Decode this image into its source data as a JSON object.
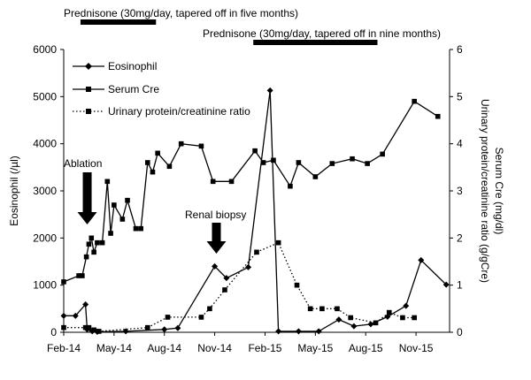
{
  "chart_data": {
    "type": "line",
    "x_axis": {
      "tick_labels": [
        "Feb-14",
        "May-14",
        "Aug-14",
        "Nov-14",
        "Feb-15",
        "May-15",
        "Aug-15",
        "Nov-15"
      ],
      "tick_months": [
        0,
        3,
        6,
        9,
        12,
        15,
        18,
        21
      ],
      "range_months": [
        0,
        23
      ]
    },
    "y_left": {
      "label": "Eosinophil (/µl)",
      "range": [
        0,
        6000
      ],
      "ticks": [
        "0",
        "1000",
        "2000",
        "3000",
        "4000",
        "5000",
        "6000"
      ]
    },
    "y_right": {
      "label_line1": "Serum Cre (mg/dl)",
      "label_line2": "Urinary protein/creatinine ratio (g/gCre)",
      "range": [
        0,
        6
      ],
      "ticks": [
        "0",
        "1",
        "2",
        "3",
        "4",
        "5",
        "6"
      ]
    },
    "legend": {
      "placement": "top-left",
      "entries": [
        "Eosinophil",
        "Serum Cre",
        "Urinary protein/creatinine ratio"
      ]
    },
    "series": [
      {
        "name": "Eosinophil",
        "axis": "left",
        "marker": "diamond",
        "line": "solid",
        "points": [
          [
            0,
            350
          ],
          [
            0.7,
            350
          ],
          [
            1.3,
            590
          ],
          [
            1.4,
            60
          ],
          [
            1.7,
            20
          ],
          [
            2.0,
            10
          ],
          [
            3.7,
            20
          ],
          [
            6.0,
            60
          ],
          [
            6.8,
            90
          ],
          [
            9.0,
            1400
          ],
          [
            9.7,
            1150
          ],
          [
            11.0,
            1380
          ],
          [
            12.3,
            5130
          ],
          [
            12.8,
            20
          ],
          [
            14.0,
            20
          ],
          [
            15.2,
            20
          ],
          [
            16.4,
            270
          ],
          [
            17.3,
            130
          ],
          [
            18.3,
            170
          ],
          [
            19.3,
            330
          ],
          [
            20.4,
            560
          ],
          [
            21.3,
            1530
          ],
          [
            22.8,
            1010
          ]
        ]
      },
      {
        "name": "Serum Cre",
        "axis": "right",
        "marker": "square",
        "line": "solid",
        "points": [
          [
            0,
            1.07
          ],
          [
            0.9,
            1.2
          ],
          [
            1.1,
            1.2
          ],
          [
            1.35,
            1.6
          ],
          [
            1.5,
            1.87
          ],
          [
            1.65,
            2.0
          ],
          [
            1.8,
            1.7
          ],
          [
            2.0,
            1.9
          ],
          [
            2.3,
            1.9
          ],
          [
            2.6,
            3.2
          ],
          [
            2.8,
            2.1
          ],
          [
            3.0,
            2.7
          ],
          [
            3.5,
            2.4
          ],
          [
            3.8,
            2.8
          ],
          [
            4.3,
            2.2
          ],
          [
            4.6,
            2.2
          ],
          [
            5.0,
            3.6
          ],
          [
            5.3,
            3.4
          ],
          [
            5.6,
            3.8
          ],
          [
            6.3,
            3.52
          ],
          [
            7.0,
            4.0
          ],
          [
            8.2,
            3.95
          ],
          [
            8.9,
            3.2
          ],
          [
            10.0,
            3.2
          ],
          [
            11.4,
            3.85
          ],
          [
            11.9,
            3.6
          ],
          [
            12.5,
            3.65
          ],
          [
            13.5,
            3.1
          ],
          [
            14.0,
            3.6
          ],
          [
            15.0,
            3.3
          ],
          [
            16.0,
            3.58
          ],
          [
            17.2,
            3.68
          ],
          [
            18.1,
            3.58
          ],
          [
            19.0,
            3.78
          ],
          [
            20.9,
            4.9
          ],
          [
            22.3,
            4.58
          ]
        ]
      },
      {
        "name": "Urinary protein/creatinine ratio",
        "axis": "right",
        "marker": "square",
        "line": "dotted",
        "points": [
          [
            0,
            0.1
          ],
          [
            1.3,
            0.1
          ],
          [
            1.5,
            0.1
          ],
          [
            1.8,
            0.05
          ],
          [
            2.1,
            0.02
          ],
          [
            5.0,
            0.1
          ],
          [
            6.2,
            0.32
          ],
          [
            8.2,
            0.32
          ],
          [
            8.7,
            0.5
          ],
          [
            9.6,
            0.9
          ],
          [
            11.5,
            1.7
          ],
          [
            12.8,
            1.9
          ],
          [
            13.9,
            1.0
          ],
          [
            14.7,
            0.5
          ],
          [
            15.4,
            0.5
          ],
          [
            16.3,
            0.5
          ],
          [
            17.1,
            0.31
          ],
          [
            18.6,
            0.2
          ],
          [
            19.4,
            0.42
          ],
          [
            20.2,
            0.31
          ],
          [
            20.9,
            0.31
          ]
        ]
      }
    ],
    "annotations": {
      "prednisone_1": {
        "text": "Prednisone (30mg/day, tapered off in five months)",
        "bar_months": [
          1.0,
          5.5
        ]
      },
      "prednisone_2": {
        "text": "Prednisone (30mg/day, tapered off in nine months)",
        "bar_months": [
          11.3,
          18.7
        ]
      },
      "ablation": {
        "text": "Ablation",
        "arrow_month": 1.4
      },
      "biopsy": {
        "text": "Renal biopsy",
        "arrow_month": 9.1
      }
    }
  }
}
